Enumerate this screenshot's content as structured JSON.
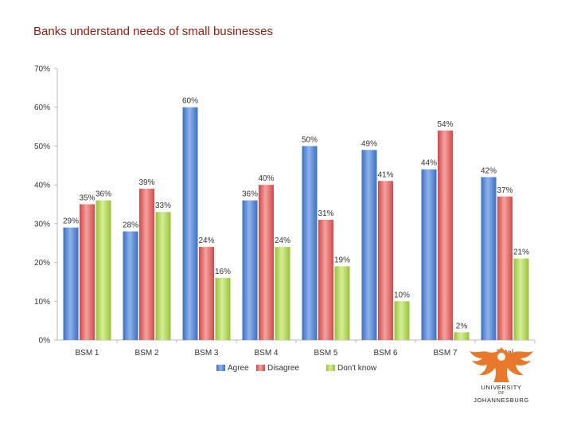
{
  "title": "Banks understand needs of small businesses",
  "colors": {
    "agree": "#4a7fd0",
    "disagree": "#e05a5a",
    "dont_know": "#a9d446",
    "title": "#8b1d10",
    "logo": "#e8792b"
  },
  "chart_data": {
    "type": "bar",
    "title": "",
    "xlabel": "",
    "ylabel": "",
    "ylim": [
      0,
      70
    ],
    "yticks": [
      "0%",
      "10%",
      "20%",
      "30%",
      "40%",
      "50%",
      "60%",
      "70%"
    ],
    "categories": [
      "BSM 1",
      "BSM 2",
      "BSM 3",
      "BSM 4",
      "BSM 5",
      "BSM 6",
      "BSM 7",
      "Total"
    ],
    "series": [
      {
        "name": "Agree",
        "color": "#4a7fd0",
        "values": [
          29,
          28,
          60,
          36,
          50,
          49,
          44,
          42
        ],
        "labels": [
          "29%",
          "28%",
          "60%",
          "36%",
          "50%",
          "49%",
          "44%",
          "42%"
        ]
      },
      {
        "name": "Disagree",
        "color": "#e05a5a",
        "values": [
          35,
          39,
          24,
          40,
          31,
          41,
          54,
          37
        ],
        "labels": [
          "35%",
          "39%",
          "24%",
          "40%",
          "31%",
          "41%",
          "54%",
          "37%"
        ]
      },
      {
        "name": "Don't know",
        "color": "#a9d446",
        "values": [
          36,
          33,
          16,
          24,
          19,
          10,
          2,
          21
        ],
        "labels": [
          "36%",
          "33%",
          "16%",
          "24%",
          "19%",
          "10%",
          "2%",
          "21%"
        ]
      }
    ],
    "legend_position": "bottom",
    "grid": false
  },
  "logo": {
    "line1": "UNIVERSITY",
    "line2": "OF",
    "line3": "JOHANNESBURG"
  }
}
